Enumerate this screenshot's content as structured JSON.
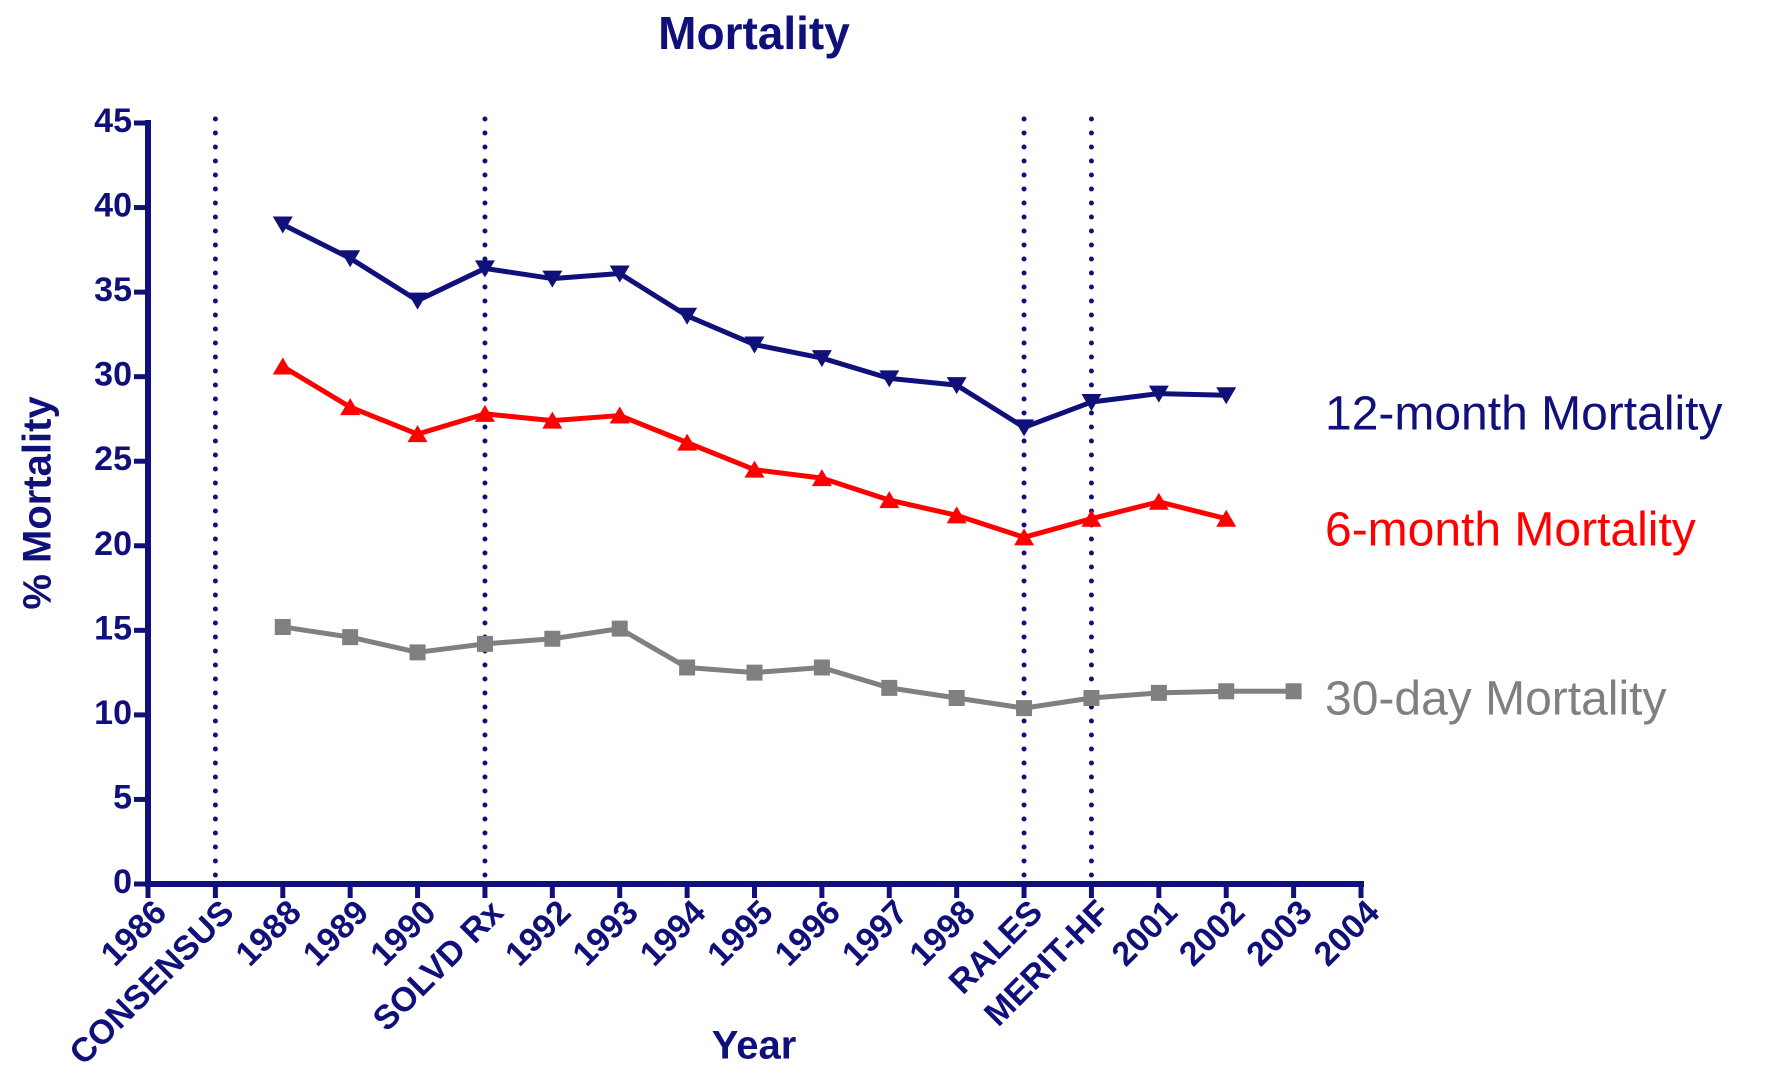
{
  "chart_data": {
    "type": "line",
    "title": "Mortality",
    "x_label": "Year",
    "y_label": "% Mortality",
    "categories": [
      "1986",
      "CONSENSUS",
      "1988",
      "1989",
      "1990",
      "SOLVD Rx",
      "1992",
      "1993",
      "1994",
      "1995",
      "1996",
      "1997",
      "1998",
      "RALES",
      "MERIT-HF",
      "2001",
      "2002",
      "2003",
      "2004"
    ],
    "event_lines": [
      1,
      5,
      13,
      14
    ],
    "ylim": [
      0,
      45
    ],
    "yticks": [
      0,
      5,
      10,
      15,
      20,
      25,
      30,
      35,
      40,
      45
    ],
    "axis_color": "#10107a",
    "series": [
      {
        "name": "12-month Mortality",
        "color": "#10107a",
        "marker": "triangle-down",
        "values": [
          null,
          null,
          39.0,
          37.0,
          34.5,
          36.4,
          35.8,
          36.1,
          33.6,
          31.9,
          31.1,
          29.9,
          29.5,
          27.0,
          28.5,
          29.0,
          28.9,
          null,
          null
        ]
      },
      {
        "name": "6-month Mortality",
        "color": "#ff0000",
        "marker": "triangle-up",
        "values": [
          null,
          null,
          30.6,
          28.2,
          26.6,
          27.8,
          27.4,
          27.7,
          26.1,
          24.5,
          24.0,
          22.7,
          21.8,
          20.5,
          21.6,
          22.6,
          21.6,
          null,
          null
        ]
      },
      {
        "name": "30-day Mortality",
        "color": "#808080",
        "marker": "square",
        "values": [
          null,
          null,
          15.2,
          14.6,
          13.7,
          14.2,
          14.5,
          15.1,
          12.8,
          12.5,
          12.8,
          11.6,
          11.0,
          10.4,
          11.0,
          11.3,
          11.4,
          11.4,
          null
        ]
      }
    ]
  }
}
